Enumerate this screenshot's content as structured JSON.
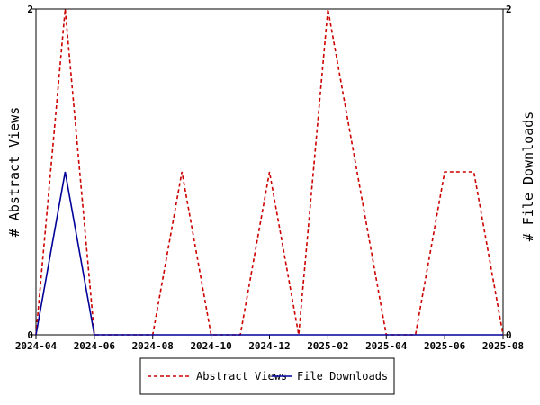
{
  "chart_data": {
    "type": "line",
    "x": [
      "2024-04",
      "2024-05",
      "2024-06",
      "2024-07",
      "2024-08",
      "2024-09",
      "2024-10",
      "2024-11",
      "2024-12",
      "2025-01",
      "2025-02",
      "2025-03",
      "2025-04",
      "2025-05",
      "2025-06",
      "2025-07",
      "2025-08"
    ],
    "x_ticks": [
      "2024-04",
      "2024-06",
      "2024-08",
      "2024-10",
      "2024-12",
      "2025-02",
      "2025-04",
      "2025-06",
      "2025-08"
    ],
    "series": [
      {
        "name": "Abstract Views",
        "axis": "left",
        "color": "#cc0000",
        "dash": "dashed",
        "values": [
          0,
          2,
          0,
          0,
          0,
          1,
          0,
          0,
          1,
          0,
          2,
          1,
          0,
          0,
          1,
          1,
          0
        ]
      },
      {
        "name": "File Downloads",
        "axis": "right",
        "color": "#000099",
        "dash": "solid",
        "values": [
          0,
          1,
          0,
          0,
          0,
          0,
          0,
          0,
          0,
          0,
          0,
          0,
          0,
          0,
          0,
          0,
          0
        ]
      }
    ],
    "ylabel": "# Abstract Views",
    "y2label": "# File Downloads",
    "ylim": [
      0,
      2
    ],
    "y2lim": [
      0,
      2
    ],
    "y_ticks": [
      "0",
      "2"
    ],
    "y2_ticks": [
      "0",
      "2"
    ],
    "grid": false,
    "legend_placement": "bottom"
  }
}
